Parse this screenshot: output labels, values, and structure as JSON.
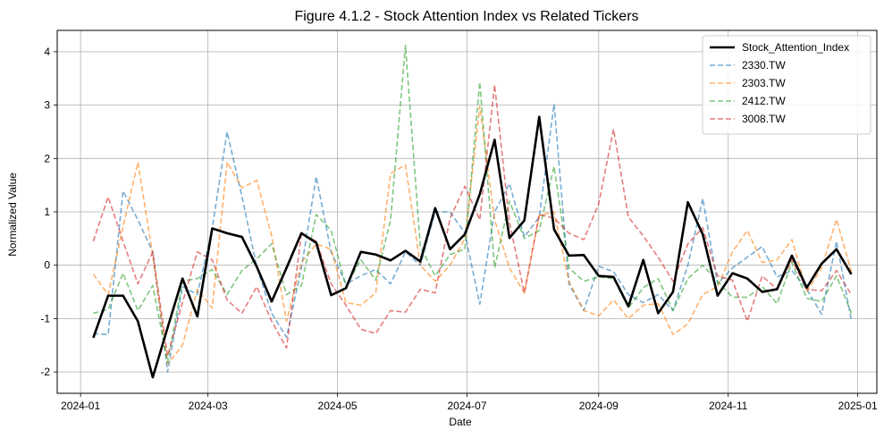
{
  "chart_data": {
    "type": "line",
    "title": "Figure 4.1.2 - Stock Attention Index vs Related Tickers",
    "xlabel": "Date",
    "ylabel": "Normalized Value",
    "xlim": [
      "2023-12-21",
      "2025-01-10"
    ],
    "ylim": [
      -2.4,
      4.4
    ],
    "grid": true,
    "legend_position": "top-right",
    "x_ticks": [
      {
        "date": "2024-01-01",
        "label": "2024-01"
      },
      {
        "date": "2024-03-01",
        "label": "2024-03"
      },
      {
        "date": "2024-05-01",
        "label": "2024-05"
      },
      {
        "date": "2024-07-01",
        "label": "2024-07"
      },
      {
        "date": "2024-09-01",
        "label": "2024-09"
      },
      {
        "date": "2024-11-01",
        "label": "2024-11"
      },
      {
        "date": "2025-01-01",
        "label": "2025-01"
      }
    ],
    "y_ticks": [
      {
        "value": -2,
        "label": "-2"
      },
      {
        "value": -1,
        "label": "-1"
      },
      {
        "value": 0,
        "label": "0"
      },
      {
        "value": 1,
        "label": "1"
      },
      {
        "value": 2,
        "label": "2"
      },
      {
        "value": 3,
        "label": "3"
      },
      {
        "value": 4,
        "label": "4"
      }
    ],
    "x": [
      "2024-01-07",
      "2024-01-14",
      "2024-01-21",
      "2024-01-28",
      "2024-02-04",
      "2024-02-11",
      "2024-02-18",
      "2024-02-25",
      "2024-03-03",
      "2024-03-10",
      "2024-03-17",
      "2024-03-24",
      "2024-03-31",
      "2024-04-07",
      "2024-04-14",
      "2024-04-21",
      "2024-04-28",
      "2024-05-05",
      "2024-05-12",
      "2024-05-19",
      "2024-05-26",
      "2024-06-02",
      "2024-06-09",
      "2024-06-16",
      "2024-06-23",
      "2024-06-30",
      "2024-07-07",
      "2024-07-14",
      "2024-07-21",
      "2024-07-28",
      "2024-08-04",
      "2024-08-11",
      "2024-08-18",
      "2024-08-25",
      "2024-09-01",
      "2024-09-08",
      "2024-09-15",
      "2024-09-22",
      "2024-09-29",
      "2024-10-06",
      "2024-10-13",
      "2024-10-20",
      "2024-10-27",
      "2024-11-03",
      "2024-11-10",
      "2024-11-17",
      "2024-11-24",
      "2024-12-01",
      "2024-12-08",
      "2024-12-15",
      "2024-12-22",
      "2024-12-29"
    ],
    "series": [
      {
        "name": "Stock_Attention_Index",
        "color": "#000000",
        "style": "solid",
        "values": [
          -1.36,
          -0.57,
          -0.57,
          -1.05,
          -2.1,
          -1.17,
          -0.25,
          -0.96,
          0.69,
          0.6,
          0.53,
          -0.03,
          -0.68,
          -0.05,
          0.6,
          0.42,
          -0.56,
          -0.43,
          0.25,
          0.2,
          0.09,
          0.27,
          0.07,
          1.07,
          0.3,
          0.58,
          1.33,
          2.35,
          0.51,
          0.84,
          2.78,
          0.67,
          0.18,
          0.19,
          -0.2,
          -0.22,
          -0.77,
          0.1,
          -0.9,
          -0.5,
          1.18,
          0.58,
          -0.57,
          -0.15,
          -0.25,
          -0.5,
          -0.45,
          0.18,
          -0.42,
          0.03,
          0.3,
          -0.17
        ]
      },
      {
        "name": "2330.TW",
        "color": "#1f77b4",
        "style": "dashed",
        "values": [
          -1.28,
          -1.3,
          1.39,
          0.85,
          0.25,
          -2.0,
          -0.4,
          -0.55,
          0.69,
          2.5,
          1.29,
          -0.03,
          -0.9,
          -1.35,
          -0.05,
          1.66,
          0.25,
          -0.35,
          -0.2,
          -0.08,
          -0.35,
          0.25,
          0.0,
          1.0,
          1.0,
          0.6,
          -0.73,
          1.0,
          1.53,
          0.53,
          0.9,
          3.02,
          -0.35,
          -0.85,
          -0.02,
          -0.12,
          -0.55,
          -0.7,
          -0.55,
          -0.85,
          0.0,
          1.25,
          -0.35,
          -0.05,
          0.15,
          0.35,
          -0.22,
          -0.1,
          -0.45,
          -0.92,
          0.45,
          -1.03
        ]
      },
      {
        "name": "2303.TW",
        "color": "#ff7f0e",
        "style": "dashed",
        "values": [
          -0.17,
          -0.55,
          0.72,
          1.93,
          0.18,
          -1.85,
          -1.5,
          -0.45,
          -0.8,
          1.93,
          1.45,
          1.59,
          0.55,
          -1.05,
          0.05,
          0.4,
          0.3,
          -0.7,
          -0.75,
          -0.52,
          1.72,
          1.88,
          0.0,
          -0.3,
          0.0,
          0.5,
          2.98,
          0.85,
          -0.05,
          -0.52,
          0.93,
          1.0,
          -0.3,
          -0.85,
          -0.95,
          -0.65,
          -1.0,
          -0.75,
          -0.72,
          -1.3,
          -1.1,
          -0.55,
          -0.4,
          0.25,
          0.65,
          0.05,
          0.1,
          0.48,
          -0.5,
          -0.05,
          0.86,
          -0.12
        ]
      },
      {
        "name": "2412.TW",
        "color": "#2ca02c",
        "style": "dashed",
        "values": [
          -0.9,
          -0.83,
          -0.15,
          -0.85,
          -0.38,
          -1.82,
          -0.3,
          -0.25,
          -0.08,
          -0.55,
          -0.1,
          0.12,
          0.4,
          -0.55,
          -0.38,
          0.95,
          0.65,
          -0.4,
          0.1,
          -0.28,
          0.85,
          4.12,
          0.35,
          -0.2,
          0.2,
          0.3,
          3.43,
          -0.05,
          1.2,
          0.5,
          0.65,
          1.85,
          -0.05,
          -0.3,
          -0.22,
          -0.25,
          -0.8,
          -0.42,
          -0.25,
          -0.85,
          -0.25,
          0.0,
          -0.3,
          -0.6,
          -0.6,
          -0.4,
          -0.72,
          0.05,
          -0.62,
          -0.68,
          -0.2,
          -0.9
        ]
      },
      {
        "name": "3008.TW",
        "color": "#d62728",
        "style": "dashed",
        "values": [
          0.45,
          1.28,
          0.45,
          -0.35,
          0.25,
          -1.7,
          -0.7,
          0.25,
          0.1,
          -0.65,
          -0.9,
          -0.4,
          -1.05,
          -1.55,
          0.58,
          0.45,
          -0.35,
          -0.75,
          -1.2,
          -1.28,
          -0.85,
          -0.88,
          -0.45,
          -0.52,
          0.88,
          1.48,
          0.85,
          3.38,
          0.8,
          -0.52,
          0.95,
          0.88,
          0.6,
          0.48,
          1.15,
          2.55,
          0.9,
          0.55,
          0.15,
          -0.3,
          0.4,
          0.7,
          -0.2,
          -0.28,
          -1.05,
          -0.2,
          -0.45,
          0.1,
          -0.45,
          -0.48,
          -0.1,
          -0.55
        ]
      }
    ]
  }
}
